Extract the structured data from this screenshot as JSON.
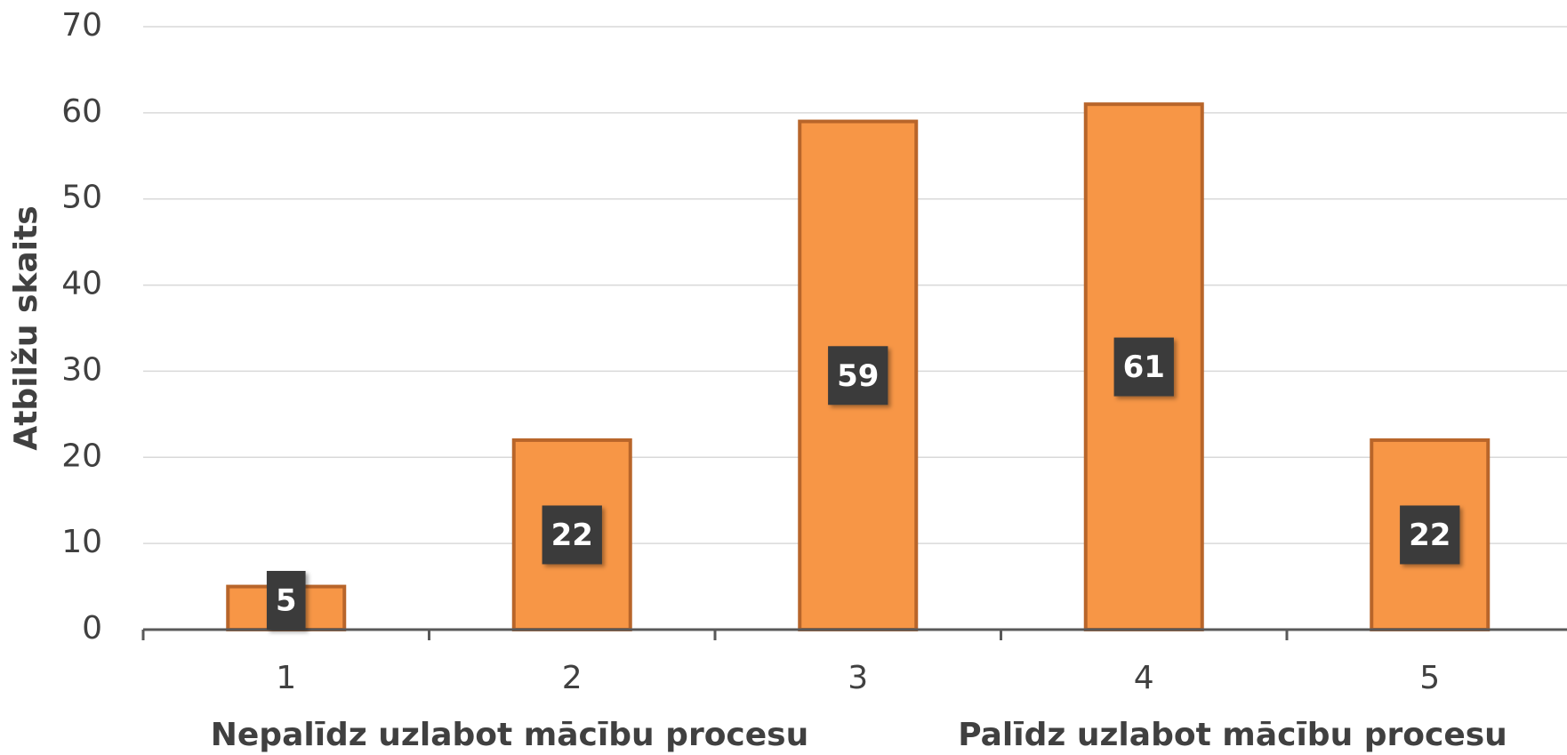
{
  "chart_data": {
    "type": "bar",
    "y_label": "Atbilžu skaits",
    "categories": [
      "1",
      "2",
      "3",
      "4",
      "5"
    ],
    "values": [
      5,
      22,
      59,
      61,
      22
    ],
    "color": "#f79646",
    "edge_color": "#b8652a",
    "ylim": [
      0,
      70
    ],
    "yticks": [
      0,
      10,
      20,
      30,
      40,
      50,
      60,
      70
    ],
    "grid": true,
    "data_labels": true,
    "annotations": [
      "Nepalīdz uzlabot mācību procesu",
      "Palīdz uzlabot mācību procesu"
    ]
  }
}
